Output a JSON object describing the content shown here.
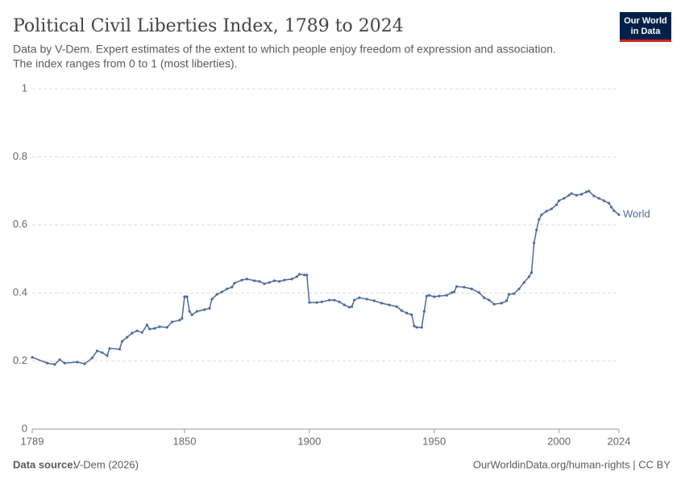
{
  "chart_data": {
    "type": "line",
    "title": "Political Civil Liberties Index, 1789 to 2024",
    "subtitle": [
      "Data by V-Dem. Expert estimates of the extent to which people enjoy freedom of expression and association.",
      "The index ranges from 0 to 1 (most liberties)."
    ],
    "logo": [
      "Our World",
      "in Data"
    ],
    "source_label": "Data source:",
    "source": "V-Dem (2026)",
    "credit": "OurWorldinData.org/human-rights | CC BY",
    "x": [
      1789,
      1795,
      1798,
      1800,
      1802,
      1807,
      1810,
      1813,
      1815,
      1817,
      1819,
      1820,
      1824,
      1825,
      1827,
      1829,
      1831,
      1833,
      1835,
      1836,
      1838,
      1840,
      1843,
      1845,
      1848,
      1849,
      1850,
      1851,
      1852,
      1853,
      1855,
      1858,
      1860,
      1861,
      1863,
      1865,
      1867,
      1869,
      1870,
      1873,
      1875,
      1878,
      1880,
      1882,
      1884,
      1886,
      1888,
      1890,
      1893,
      1895,
      1896,
      1898,
      1899,
      1900,
      1903,
      1905,
      1908,
      1910,
      1912,
      1914,
      1916,
      1917,
      1918,
      1920,
      1923,
      1926,
      1929,
      1932,
      1935,
      1937,
      1939,
      1941,
      1942,
      1943,
      1945,
      1946,
      1947,
      1948,
      1950,
      1952,
      1955,
      1957,
      1958,
      1959,
      1962,
      1965,
      1968,
      1970,
      1972,
      1974,
      1977,
      1979,
      1980,
      1982,
      1984,
      1986,
      1988,
      1989,
      1990,
      1991,
      1992,
      1993,
      1995,
      1997,
      1999,
      2000,
      2002,
      2004,
      2005,
      2007,
      2009,
      2011,
      2012,
      2014,
      2016,
      2018,
      2020,
      2021,
      2022,
      2024
    ],
    "series": [
      {
        "name": "World",
        "color": "#4c6a9c",
        "values": [
          0.211,
          0.194,
          0.19,
          0.204,
          0.194,
          0.197,
          0.192,
          0.209,
          0.23,
          0.225,
          0.216,
          0.237,
          0.235,
          0.258,
          0.27,
          0.282,
          0.289,
          0.284,
          0.306,
          0.294,
          0.296,
          0.301,
          0.299,
          0.315,
          0.32,
          0.325,
          0.389,
          0.389,
          0.346,
          0.336,
          0.346,
          0.351,
          0.355,
          0.382,
          0.396,
          0.403,
          0.412,
          0.417,
          0.429,
          0.438,
          0.441,
          0.436,
          0.434,
          0.427,
          0.431,
          0.436,
          0.434,
          0.438,
          0.441,
          0.448,
          0.455,
          0.453,
          0.453,
          0.372,
          0.372,
          0.374,
          0.379,
          0.379,
          0.374,
          0.365,
          0.358,
          0.36,
          0.379,
          0.386,
          0.382,
          0.377,
          0.37,
          0.365,
          0.36,
          0.348,
          0.341,
          0.336,
          0.303,
          0.299,
          0.299,
          0.346,
          0.391,
          0.393,
          0.389,
          0.391,
          0.393,
          0.401,
          0.403,
          0.419,
          0.417,
          0.412,
          0.401,
          0.386,
          0.379,
          0.367,
          0.37,
          0.377,
          0.396,
          0.398,
          0.412,
          0.431,
          0.448,
          0.46,
          0.547,
          0.585,
          0.616,
          0.63,
          0.64,
          0.647,
          0.659,
          0.671,
          0.678,
          0.687,
          0.692,
          0.687,
          0.69,
          0.697,
          0.699,
          0.685,
          0.678,
          0.671,
          0.664,
          0.652,
          0.642,
          0.63
        ]
      }
    ],
    "xlim": [
      1789,
      2024
    ],
    "xticks": [
      1789,
      1850,
      1900,
      1950,
      2000,
      2024
    ],
    "ylim": [
      0,
      1
    ],
    "yticks": [
      0,
      0.2,
      0.4,
      0.6,
      0.8,
      1
    ],
    "grid": true
  }
}
